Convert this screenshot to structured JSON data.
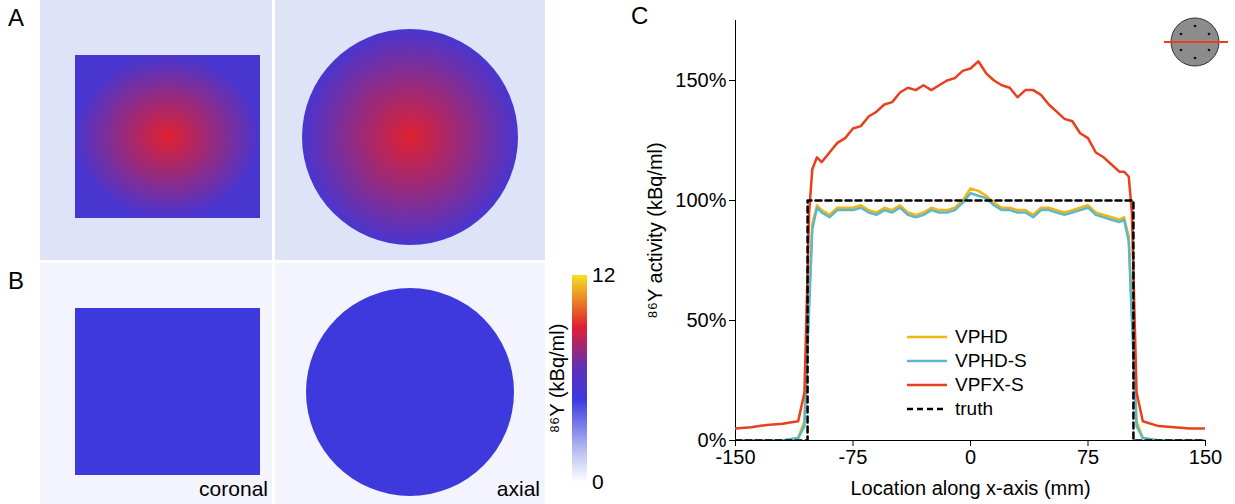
{
  "views": [
    "coronal",
    "axial"
  ],
  "image_panels": [
    {
      "letter": "A",
      "center_activity": 9,
      "edge_activity": 5.5,
      "background_activity": 0.8
    },
    {
      "letter": "B",
      "center_activity": 5,
      "edge_activity": 5,
      "background_activity": 0.3
    }
  ],
  "colorbar": {
    "label": "⁸⁶Y (kBq/ml)",
    "range": [
      0,
      12
    ],
    "ticks": [
      0,
      12
    ]
  },
  "chart_data": {
    "letter": "C",
    "type": "line",
    "x_label": "Location along x-axis (mm)",
    "y_label": "⁸⁶Y activity (kBq/ml)",
    "xlim": [
      -150,
      150
    ],
    "xticks": [
      -150,
      -75,
      0,
      75,
      150
    ],
    "ylim": [
      0,
      175
    ],
    "yticks": [
      {
        "value": 0,
        "label": "0%"
      },
      {
        "value": 50,
        "label": "50%"
      },
      {
        "value": 100,
        "label": "100%"
      },
      {
        "value": 150,
        "label": "150%"
      }
    ],
    "legend": "bottom",
    "x": [
      -150,
      -140,
      -130,
      -120,
      -110,
      -106,
      -103,
      -101,
      -98,
      -95,
      -90,
      -85,
      -80,
      -75,
      -70,
      -65,
      -60,
      -55,
      -50,
      -45,
      -40,
      -35,
      -30,
      -25,
      -20,
      -15,
      -10,
      -5,
      0,
      5,
      10,
      15,
      20,
      25,
      30,
      35,
      40,
      45,
      50,
      55,
      60,
      65,
      70,
      75,
      80,
      85,
      90,
      95,
      98,
      101,
      103,
      106,
      110,
      120,
      130,
      140,
      150
    ],
    "series": [
      {
        "name": "VPHD",
        "color": "#f5b50a",
        "line_style": "solid",
        "values": [
          0,
          0,
          0,
          0,
          1,
          8,
          60,
          90,
          98,
          96,
          94,
          97,
          97,
          97,
          98,
          96,
          95,
          97,
          96,
          98,
          95,
          94,
          95,
          97,
          96,
          96,
          97,
          100,
          105,
          104,
          102,
          99,
          97,
          97,
          96,
          96,
          94,
          97,
          97,
          96,
          95,
          96,
          97,
          98,
          95,
          94,
          93,
          92,
          93,
          85,
          55,
          8,
          1,
          0,
          0,
          0,
          0
        ]
      },
      {
        "name": "VPHD-S",
        "color": "#5bb8cc",
        "line_style": "solid",
        "values": [
          0,
          0,
          0,
          0,
          1,
          6,
          55,
          88,
          97,
          95,
          93,
          96,
          96,
          96,
          97,
          95,
          94,
          96,
          95,
          97,
          94,
          93,
          94,
          96,
          95,
          95,
          96,
          99,
          103,
          102,
          101,
          98,
          96,
          96,
          95,
          95,
          93,
          96,
          96,
          95,
          94,
          95,
          96,
          97,
          94,
          93,
          92,
          91,
          92,
          83,
          50,
          6,
          1,
          0,
          0,
          0,
          0
        ]
      },
      {
        "name": "VPFX-S",
        "color": "#e8401c",
        "line_style": "solid",
        "values": [
          5,
          5.5,
          6.5,
          7,
          8,
          20,
          95,
          113,
          118,
          116,
          120,
          124,
          126,
          130,
          131,
          135,
          137,
          140,
          141,
          145,
          147,
          146,
          148,
          146,
          148,
          150,
          151,
          154,
          155,
          158,
          153,
          150,
          148,
          147,
          143,
          146,
          146,
          144,
          140,
          137,
          134,
          133,
          128,
          126,
          120,
          118,
          115,
          112,
          112,
          110,
          95,
          20,
          8,
          6,
          5.5,
          5,
          5
        ]
      },
      {
        "name": "truth",
        "color": "#000000",
        "line_style": "dashed",
        "x": [
          -150,
          -104,
          -104,
          104,
          104,
          150
        ],
        "values": [
          0,
          0,
          100,
          100,
          0,
          0
        ]
      }
    ]
  }
}
